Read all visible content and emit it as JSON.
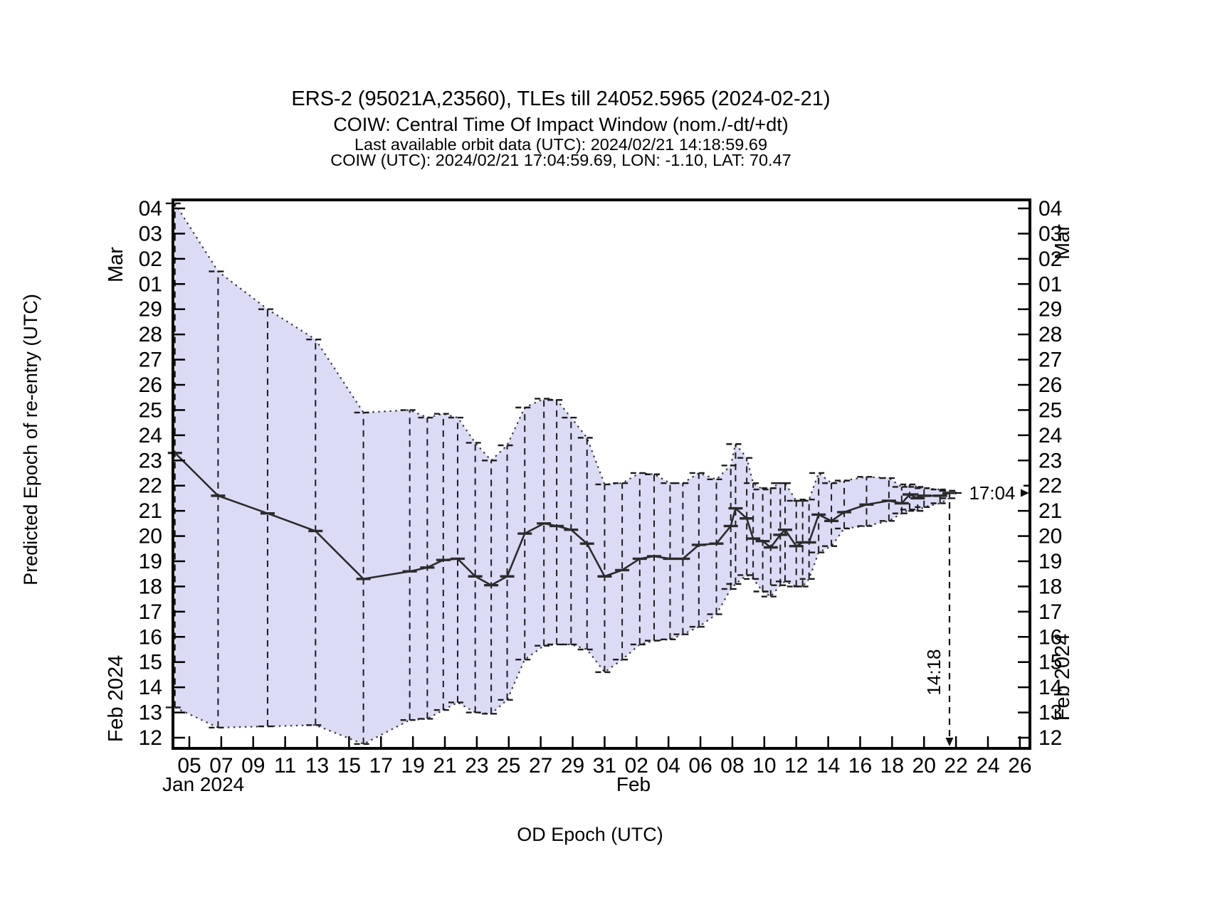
{
  "colors": {
    "band_fill": "#dbdbf6",
    "band_edge": "#3c3c3c",
    "line": "#2b2b2b",
    "frame": "#000000"
  },
  "chart_data": {
    "type": "line",
    "title": "ERS-2 (95021A,23560), TLEs till 24052.5965 (2024-02-21)",
    "subtitle": "COIW: Central Time Of Impact Window (nom./-dt/+dt)",
    "info_line_1": "Last available orbit data (UTC): 2024/02/21 14:18:59.69",
    "info_line_2": "COIW (UTC): 2024/02/21 17:04:59.69, LON: -1.10, LAT: 70.47",
    "x_axis": {
      "label": "OD Epoch (UTC)",
      "tick_day_of_year": [
        5,
        7,
        9,
        11,
        13,
        15,
        17,
        19,
        21,
        23,
        25,
        27,
        29,
        31,
        33,
        35,
        37,
        39,
        41,
        43,
        45,
        47,
        49,
        51,
        53,
        55,
        57
      ],
      "tick_labels": [
        "05",
        "07",
        "09",
        "11",
        "13",
        "15",
        "17",
        "19",
        "21",
        "23",
        "25",
        "27",
        "29",
        "31",
        "02",
        "04",
        "06",
        "08",
        "10",
        "12",
        "14",
        "16",
        "18",
        "20",
        "22",
        "24",
        "26"
      ],
      "month_label_start": "Jan 2024",
      "month_label_feb": "Feb",
      "range_day_of_year": [
        4.0,
        57.6
      ]
    },
    "y_axis": {
      "label": "Predicted Epoch of re-entry (UTC)",
      "unit": "day of Feb 2024 (values 30-33 = Mar 01-04)",
      "tick_values": [
        12,
        13,
        14,
        15,
        16,
        17,
        18,
        19,
        20,
        21,
        22,
        23,
        24,
        25,
        26,
        27,
        28,
        29,
        30,
        31,
        32,
        33
      ],
      "tick_labels": [
        "12",
        "13",
        "14",
        "15",
        "16",
        "17",
        "18",
        "19",
        "20",
        "21",
        "22",
        "23",
        "24",
        "25",
        "26",
        "27",
        "28",
        "29",
        "01",
        "02",
        "03",
        "04"
      ],
      "month_label_top": "Mar",
      "month_label_bottom": "Feb 2024",
      "range": [
        11.6,
        33.3
      ]
    },
    "grid": "off",
    "legend": "none",
    "series": {
      "od_epoch_day_of_year": [
        4.1,
        6.8,
        9.9,
        12.9,
        15.9,
        18.8,
        19.9,
        20.9,
        21.8,
        22.9,
        23.9,
        24.9,
        26.0,
        27.2,
        28.0,
        28.9,
        29.9,
        31.0,
        32.1,
        33.2,
        34.1,
        35.1,
        35.9,
        36.9,
        38.0,
        38.9,
        39.2,
        39.9,
        40.3,
        40.9,
        41.4,
        42.0,
        42.3,
        43.0,
        43.4,
        43.8,
        44.4,
        45.2,
        46.0,
        47.4,
        48.8,
        49.6,
        50.1,
        50.6,
        51.0,
        52.0,
        52.6
      ],
      "center": [
        23.3,
        21.6,
        20.9,
        20.2,
        18.3,
        18.6,
        18.75,
        19.05,
        19.1,
        18.4,
        18.05,
        18.4,
        20.1,
        20.5,
        20.4,
        20.25,
        19.7,
        18.4,
        18.65,
        19.1,
        19.2,
        19.1,
        19.1,
        19.65,
        19.7,
        20.4,
        21.1,
        20.7,
        19.9,
        19.8,
        19.55,
        20.05,
        20.25,
        19.6,
        19.75,
        19.75,
        20.85,
        20.6,
        20.95,
        21.25,
        21.4,
        21.3,
        21.65,
        21.5,
        21.6,
        21.6,
        21.71
      ],
      "window_min": [
        13.2,
        12.4,
        12.45,
        12.5,
        11.75,
        12.7,
        12.75,
        13.1,
        13.4,
        13.0,
        12.95,
        13.5,
        15.1,
        15.65,
        15.7,
        15.7,
        15.5,
        14.6,
        15.1,
        15.7,
        15.85,
        15.9,
        16.1,
        16.4,
        16.9,
        17.9,
        18.1,
        18.45,
        18.3,
        17.8,
        17.6,
        18.05,
        18.2,
        18.0,
        18.0,
        18.3,
        19.35,
        19.6,
        20.3,
        20.4,
        20.6,
        20.9,
        21.05,
        21.0,
        21.15,
        21.3,
        21.5
      ],
      "window_max": [
        33.2,
        30.5,
        29.0,
        27.8,
        24.9,
        25.0,
        24.7,
        24.85,
        24.7,
        23.7,
        23.0,
        23.6,
        25.1,
        25.45,
        25.4,
        24.7,
        23.9,
        22.05,
        22.1,
        22.5,
        22.45,
        22.1,
        22.1,
        22.5,
        22.25,
        22.8,
        23.65,
        23.1,
        22.1,
        21.85,
        21.9,
        22.1,
        22.1,
        21.4,
        21.4,
        21.45,
        22.5,
        22.1,
        22.2,
        22.35,
        22.3,
        21.95,
        22.05,
        21.95,
        21.9,
        21.85,
        21.8
      ]
    },
    "annotations": [
      {
        "text": "17:04",
        "axis": "y",
        "meaning_value": 21.71
      },
      {
        "text": "14:18",
        "axis": "x",
        "meaning_value": 52.6
      }
    ]
  }
}
